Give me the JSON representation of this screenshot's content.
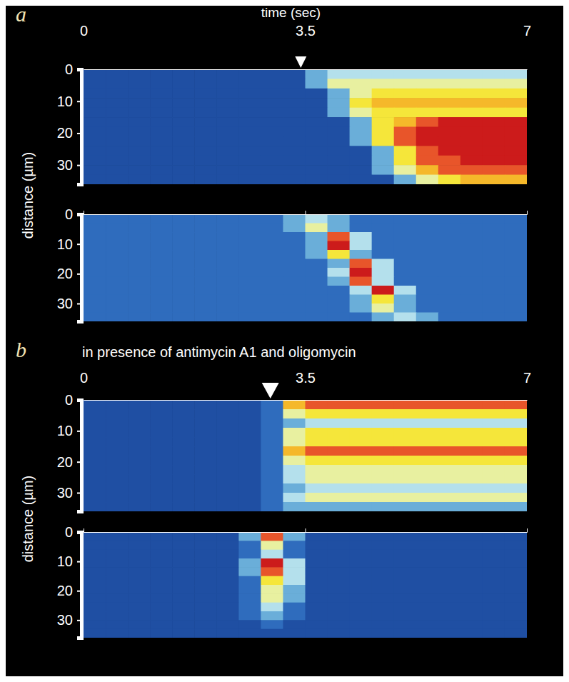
{
  "chart_data": [
    {
      "type": "heatmap",
      "panel_label": "a",
      "xlabel": "time (sec)",
      "ylabel": "distance (µm)",
      "xlim": [
        0,
        7
      ],
      "xticks": [
        0,
        3.5,
        7
      ],
      "ylim": [
        0,
        36
      ],
      "yticks": [
        0,
        10,
        20,
        30
      ],
      "zlim": [
        0,
        9
      ],
      "stimulus": 3.43,
      "xbins": [
        0,
        0.35,
        0.7,
        1.05,
        1.4,
        1.75,
        2.1,
        2.45,
        2.8,
        3.15,
        3.5,
        3.85,
        4.2,
        4.55,
        4.9,
        5.25,
        5.6,
        5.95,
        6.3,
        6.65,
        7
      ],
      "ybins": [
        0,
        3,
        6,
        9,
        12,
        15,
        18,
        21,
        24,
        27,
        30,
        33,
        36
      ],
      "z": [
        [
          1,
          1,
          1,
          1,
          1,
          1,
          1,
          1,
          1,
          1,
          3,
          4,
          4,
          4,
          4,
          4,
          4,
          4,
          4,
          4
        ],
        [
          1,
          1,
          1,
          1,
          1,
          1,
          1,
          1,
          1,
          1,
          3,
          5,
          5,
          5,
          5,
          5,
          5,
          5,
          5,
          5
        ],
        [
          1,
          1,
          1,
          1,
          1,
          1,
          1,
          1,
          1,
          1,
          1,
          3,
          5,
          6,
          6,
          6,
          6,
          6,
          6,
          6
        ],
        [
          1,
          1,
          1,
          1,
          1,
          1,
          1,
          1,
          1,
          1,
          1,
          3,
          6,
          7,
          7,
          7,
          7,
          7,
          7,
          7
        ],
        [
          1,
          1,
          1,
          1,
          1,
          1,
          1,
          1,
          1,
          1,
          1,
          3,
          5,
          6,
          6,
          6,
          6,
          6,
          6,
          6
        ],
        [
          1,
          1,
          1,
          1,
          1,
          1,
          1,
          1,
          1,
          1,
          1,
          1,
          3,
          6,
          7,
          8,
          9,
          9,
          9,
          9
        ],
        [
          1,
          1,
          1,
          1,
          1,
          1,
          1,
          1,
          1,
          1,
          1,
          1,
          3,
          6,
          8,
          9,
          9,
          9,
          9,
          9
        ],
        [
          1,
          1,
          1,
          1,
          1,
          1,
          1,
          1,
          1,
          1,
          1,
          1,
          3,
          6,
          8,
          9,
          9,
          9,
          9,
          9
        ],
        [
          1,
          1,
          1,
          1,
          1,
          1,
          1,
          1,
          1,
          1,
          1,
          1,
          1,
          3,
          6,
          8,
          9,
          9,
          9,
          9
        ],
        [
          1,
          1,
          1,
          1,
          1,
          1,
          1,
          1,
          1,
          1,
          1,
          1,
          1,
          3,
          6,
          8,
          8,
          9,
          9,
          9
        ],
        [
          1,
          1,
          1,
          1,
          1,
          1,
          1,
          1,
          1,
          1,
          1,
          1,
          1,
          3,
          5,
          7,
          8,
          8,
          8,
          8
        ],
        [
          1,
          1,
          1,
          1,
          1,
          1,
          1,
          1,
          1,
          1,
          1,
          1,
          1,
          1,
          3,
          5,
          6,
          7,
          7,
          7
        ]
      ]
    },
    {
      "type": "heatmap",
      "tick_labels": "y",
      "xlim": [
        0,
        7
      ],
      "xticks": [
        0,
        3.5,
        7
      ],
      "ylim": [
        0,
        36
      ],
      "yticks": [
        0,
        10,
        20,
        30
      ],
      "zlim": [
        0,
        9
      ],
      "xbins": [
        0,
        0.35,
        0.7,
        1.05,
        1.4,
        1.75,
        2.1,
        2.45,
        2.8,
        3.15,
        3.5,
        3.85,
        4.2,
        4.55,
        4.9,
        5.25,
        5.6,
        5.95,
        6.3,
        6.65,
        7
      ],
      "ybins": [
        0,
        3,
        6,
        9,
        12,
        15,
        18,
        21,
        24,
        27,
        30,
        33,
        36
      ],
      "z": [
        [
          2,
          2,
          2,
          2,
          2,
          2,
          2,
          2,
          2,
          3,
          4,
          3,
          2,
          2,
          2,
          2,
          2,
          2,
          2,
          2
        ],
        [
          2,
          2,
          2,
          2,
          2,
          2,
          2,
          2,
          2,
          3,
          5,
          3,
          2,
          2,
          2,
          2,
          2,
          2,
          2,
          2
        ],
        [
          2,
          2,
          2,
          2,
          2,
          2,
          2,
          2,
          2,
          2,
          3,
          8,
          4,
          2,
          2,
          2,
          2,
          2,
          2,
          2
        ],
        [
          2,
          2,
          2,
          2,
          2,
          2,
          2,
          2,
          2,
          2,
          3,
          9,
          4,
          2,
          2,
          2,
          2,
          2,
          2,
          2
        ],
        [
          2,
          2,
          2,
          2,
          2,
          2,
          2,
          2,
          2,
          2,
          3,
          6,
          3,
          2,
          2,
          2,
          2,
          2,
          2,
          2
        ],
        [
          2,
          2,
          2,
          2,
          2,
          2,
          2,
          2,
          2,
          2,
          2,
          3,
          8,
          4,
          2,
          2,
          2,
          2,
          2,
          2
        ],
        [
          2,
          2,
          2,
          2,
          2,
          2,
          2,
          2,
          2,
          2,
          2,
          4,
          9,
          4,
          2,
          2,
          2,
          2,
          2,
          2
        ],
        [
          2,
          2,
          2,
          2,
          2,
          2,
          2,
          2,
          2,
          2,
          2,
          3,
          8,
          4,
          2,
          2,
          2,
          2,
          2,
          2
        ],
        [
          2,
          2,
          2,
          2,
          2,
          2,
          2,
          2,
          2,
          2,
          2,
          2,
          4,
          9,
          4,
          2,
          2,
          2,
          2,
          2
        ],
        [
          2,
          2,
          2,
          2,
          2,
          2,
          2,
          2,
          2,
          2,
          2,
          2,
          3,
          6,
          3,
          2,
          2,
          2,
          2,
          2
        ],
        [
          2,
          2,
          2,
          2,
          2,
          2,
          2,
          2,
          2,
          2,
          2,
          2,
          3,
          5,
          3,
          2,
          2,
          2,
          2,
          2
        ],
        [
          2,
          2,
          2,
          2,
          2,
          2,
          2,
          2,
          2,
          2,
          2,
          2,
          2,
          3,
          4,
          3,
          2,
          2,
          2,
          2
        ]
      ]
    },
    {
      "type": "heatmap",
      "panel_label": "b",
      "title": "in presence of antimycin A1 and oligomycin",
      "ylabel": "distance (µm)",
      "xlim": [
        0,
        7
      ],
      "xticks": [
        0,
        3.5,
        7
      ],
      "ylim": [
        0,
        36
      ],
      "yticks": [
        0,
        10,
        20,
        30
      ],
      "zlim": [
        0,
        9
      ],
      "stimulus": 2.95,
      "xbins": [
        0,
        0.35,
        0.7,
        1.05,
        1.4,
        1.75,
        2.1,
        2.45,
        2.8,
        3.15,
        3.5,
        3.85,
        4.2,
        4.55,
        4.9,
        5.25,
        5.6,
        5.95,
        6.3,
        6.65,
        7
      ],
      "ybins": [
        0,
        3,
        6,
        9,
        12,
        15,
        18,
        21,
        24,
        27,
        30,
        33,
        36
      ],
      "z": [
        [
          1,
          1,
          1,
          1,
          1,
          1,
          1,
          1,
          2,
          7,
          8,
          8,
          8,
          8,
          8,
          8,
          8,
          8,
          8,
          8
        ],
        [
          1,
          1,
          1,
          1,
          1,
          1,
          1,
          1,
          2,
          5,
          6,
          6,
          6,
          6,
          6,
          6,
          6,
          6,
          6,
          6
        ],
        [
          1,
          1,
          1,
          1,
          1,
          1,
          1,
          1,
          2,
          3,
          4,
          4,
          4,
          4,
          4,
          4,
          4,
          4,
          4,
          4
        ],
        [
          1,
          1,
          1,
          1,
          1,
          1,
          1,
          1,
          2,
          5,
          6,
          6,
          6,
          6,
          6,
          6,
          6,
          6,
          6,
          6
        ],
        [
          1,
          1,
          1,
          1,
          1,
          1,
          1,
          1,
          2,
          5,
          6,
          6,
          6,
          6,
          6,
          6,
          6,
          6,
          6,
          6
        ],
        [
          1,
          1,
          1,
          1,
          1,
          1,
          1,
          1,
          2,
          7,
          8,
          8,
          8,
          8,
          8,
          8,
          8,
          8,
          8,
          8
        ],
        [
          1,
          1,
          1,
          1,
          1,
          1,
          1,
          1,
          2,
          5,
          6,
          6,
          6,
          6,
          6,
          6,
          6,
          6,
          6,
          6
        ],
        [
          1,
          1,
          1,
          1,
          1,
          1,
          1,
          1,
          2,
          4,
          5,
          5,
          5,
          5,
          5,
          5,
          5,
          5,
          5,
          5
        ],
        [
          1,
          1,
          1,
          1,
          1,
          1,
          1,
          1,
          2,
          4,
          5,
          5,
          5,
          5,
          5,
          5,
          5,
          5,
          5,
          5
        ],
        [
          1,
          1,
          1,
          1,
          1,
          1,
          1,
          1,
          2,
          3,
          4,
          4,
          4,
          4,
          4,
          4,
          4,
          4,
          4,
          4
        ],
        [
          1,
          1,
          1,
          1,
          1,
          1,
          1,
          1,
          2,
          4,
          5,
          5,
          5,
          5,
          5,
          5,
          5,
          5,
          5,
          5
        ],
        [
          1,
          1,
          1,
          1,
          1,
          1,
          1,
          1,
          2,
          3,
          3,
          3,
          3,
          3,
          3,
          3,
          3,
          3,
          3,
          3
        ]
      ]
    },
    {
      "type": "heatmap",
      "tick_labels": "y",
      "xlim": [
        0,
        7
      ],
      "xticks": [
        0,
        3.5,
        7
      ],
      "ylim": [
        0,
        36
      ],
      "yticks": [
        0,
        10,
        20,
        30
      ],
      "zlim": [
        0,
        9
      ],
      "xbins": [
        0,
        0.35,
        0.7,
        1.05,
        1.4,
        1.75,
        2.1,
        2.45,
        2.8,
        3.15,
        3.5,
        3.85,
        4.2,
        4.55,
        4.9,
        5.25,
        5.6,
        5.95,
        6.3,
        6.65,
        7
      ],
      "ybins": [
        0,
        3,
        6,
        9,
        12,
        15,
        18,
        21,
        24,
        27,
        30,
        33,
        36
      ],
      "z": [
        [
          1,
          1,
          1,
          1,
          1,
          1,
          1,
          3,
          8,
          3,
          1,
          1,
          1,
          1,
          1,
          1,
          1,
          1,
          1,
          1
        ],
        [
          1,
          1,
          1,
          1,
          1,
          1,
          1,
          2,
          5,
          2,
          1,
          1,
          1,
          1,
          1,
          1,
          1,
          1,
          1,
          1
        ],
        [
          1,
          1,
          1,
          1,
          1,
          1,
          1,
          2,
          4,
          2,
          1,
          1,
          1,
          1,
          1,
          1,
          1,
          1,
          1,
          1
        ],
        [
          1,
          1,
          1,
          1,
          1,
          1,
          1,
          3,
          9,
          4,
          1,
          1,
          1,
          1,
          1,
          1,
          1,
          1,
          1,
          1
        ],
        [
          1,
          1,
          1,
          1,
          1,
          1,
          1,
          3,
          8,
          4,
          1,
          1,
          1,
          1,
          1,
          1,
          1,
          1,
          1,
          1
        ],
        [
          1,
          1,
          1,
          1,
          1,
          1,
          1,
          2,
          6,
          4,
          1,
          1,
          1,
          1,
          1,
          1,
          1,
          1,
          1,
          1
        ],
        [
          1,
          1,
          1,
          1,
          1,
          1,
          1,
          2,
          5,
          3,
          1,
          1,
          1,
          1,
          1,
          1,
          1,
          1,
          1,
          1
        ],
        [
          1,
          1,
          1,
          1,
          1,
          1,
          1,
          2,
          5,
          3,
          1,
          1,
          1,
          1,
          1,
          1,
          1,
          1,
          1,
          1
        ],
        [
          1,
          1,
          1,
          1,
          1,
          1,
          1,
          2,
          4,
          2,
          1,
          1,
          1,
          1,
          1,
          1,
          1,
          1,
          1,
          1
        ],
        [
          1,
          1,
          1,
          1,
          1,
          1,
          1,
          2,
          3,
          2,
          1,
          1,
          1,
          1,
          1,
          1,
          1,
          1,
          1,
          1
        ],
        [
          1,
          1,
          1,
          1,
          1,
          1,
          1,
          1,
          2,
          1,
          1,
          1,
          1,
          1,
          1,
          1,
          1,
          1,
          1,
          1
        ],
        [
          1,
          1,
          1,
          1,
          1,
          1,
          1,
          1,
          1,
          1,
          1,
          1,
          1,
          1,
          1,
          1,
          1,
          1,
          1,
          1
        ]
      ]
    }
  ]
}
